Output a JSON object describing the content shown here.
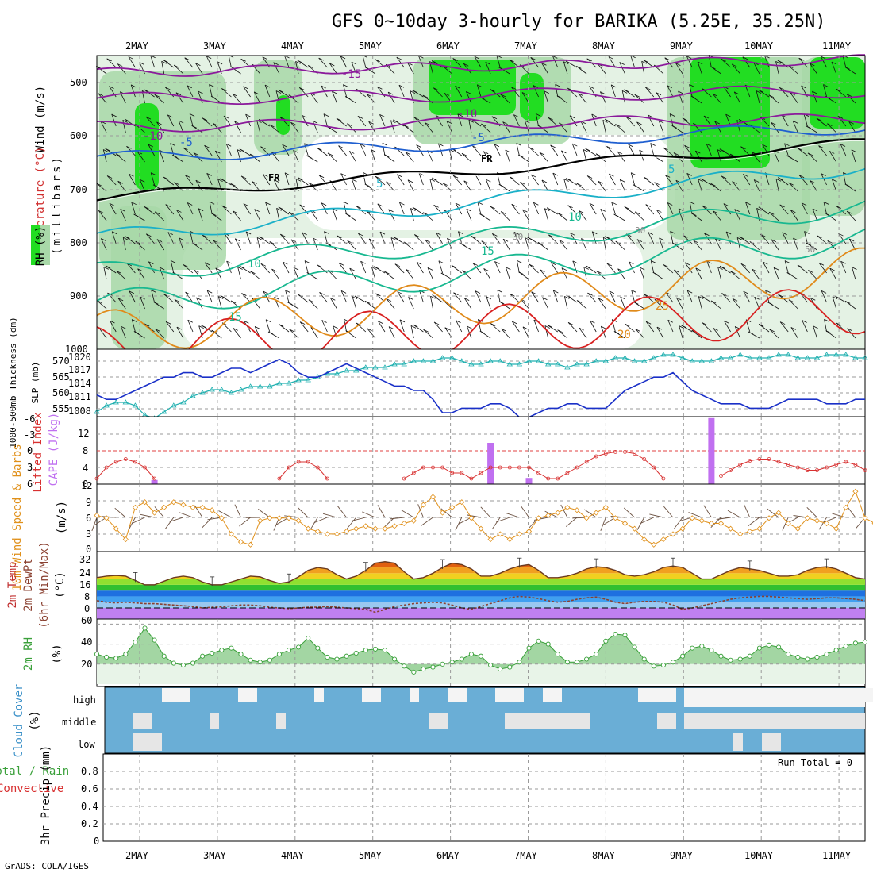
{
  "title": "GFS 0~10day 3-hourly for BARIKA (5.25E, 35.25N)",
  "credit": "GrADS: COLA/IGES",
  "colors": {
    "rh_green": "#22dd22",
    "rh_mid": "#a8d8a8",
    "rh_light": "#e4f2e4",
    "temp_purple": "#8b1a9b",
    "temp_blue": "#1f5fd0",
    "temp_cyan": "#1ab0c8",
    "temp_teal": "#18b890",
    "temp_orange": "#e08a1a",
    "temp_red": "#d82020",
    "freezing": "#000000",
    "thickness": "#20b0b0",
    "slp": "#1a30c8",
    "lifted_index": "#d83030",
    "cape": "#c070f0",
    "wind_speed": "#e0901a",
    "rh2m": "#3aa03a",
    "cloud_blue": "#6aaed6",
    "cloud_white": "#f4f4f4"
  },
  "chart_data": [
    {
      "id": "upper_air",
      "type": "heatmap",
      "ylabel": "Wind (m/s)",
      "ylabel2": "Temperature (°C)",
      "ylabel3": "(millibars)",
      "rh_label": "RH (%)",
      "x_ticks": [
        "2MAY",
        "3MAY",
        "4MAY",
        "5MAY",
        "6MAY",
        "7MAY",
        "8MAY",
        "9MAY",
        "10MAY",
        "11MAY"
      ],
      "y_ticks": [
        "500",
        "600",
        "700",
        "800",
        "900",
        "1000"
      ],
      "ylim": [
        1000,
        450
      ],
      "isotherm_labels": [
        "-15",
        "-10",
        "-10",
        "-5",
        "-5",
        "FR",
        "FR",
        "5",
        "5",
        "10",
        "10",
        "15",
        "15",
        "20",
        "25",
        "5",
        "50",
        "30"
      ]
    },
    {
      "id": "thickness_slp",
      "type": "line",
      "ylabel": "1000-500mb Thickness (dm)",
      "ylabel2": "SLP (mb)",
      "left_ticks": [
        "570",
        "565",
        "560",
        "555"
      ],
      "right_ticks": [
        "1020",
        "1017",
        "1014",
        "1011",
        "1008"
      ],
      "thickness": [
        554,
        556,
        557,
        557,
        556,
        553,
        552,
        554,
        556,
        557,
        559,
        560,
        561,
        561,
        560,
        561,
        562,
        562,
        562,
        563,
        563,
        564,
        564,
        565,
        566,
        566,
        567,
        567,
        568,
        568,
        568,
        569,
        569,
        570,
        570,
        570,
        571,
        571,
        570,
        569,
        569,
        570,
        570,
        569,
        569,
        570,
        570,
        569,
        569,
        568,
        569,
        569,
        570,
        570,
        571,
        571,
        570,
        570,
        571,
        572,
        572,
        571,
        570,
        570,
        570,
        571,
        571,
        572,
        571,
        571,
        571,
        572,
        572,
        571,
        571,
        571,
        572,
        572,
        572,
        571,
        571
      ],
      "slp": [
        1012,
        1011,
        1011,
        1012,
        1013,
        1014,
        1015,
        1016,
        1016,
        1017,
        1017,
        1016,
        1016,
        1017,
        1018,
        1018,
        1017,
        1018,
        1019,
        1020,
        1019,
        1017,
        1016,
        1016,
        1017,
        1018,
        1019,
        1018,
        1017,
        1016,
        1015,
        1014,
        1014,
        1013,
        1013,
        1011,
        1008,
        1008,
        1009,
        1009,
        1009,
        1010,
        1010,
        1009,
        1007,
        1007,
        1008,
        1009,
        1009,
        1010,
        1010,
        1009,
        1009,
        1009,
        1011,
        1013,
        1014,
        1015,
        1016,
        1016,
        1017,
        1015,
        1013,
        1012,
        1011,
        1010,
        1010,
        1010,
        1009,
        1009,
        1009,
        1010,
        1011,
        1011,
        1011,
        1011,
        1010,
        1010,
        1010,
        1011,
        1011
      ]
    },
    {
      "id": "lifted_cape",
      "type": "bar",
      "ylabel": "Lifted Index",
      "ylabel2": "CAPE (J/kg)",
      "left_ticks": [
        "-6",
        "-3",
        "0",
        "3",
        "6"
      ],
      "right_ticks": [
        "12",
        "8",
        "4",
        "0"
      ],
      "cape_bars": [
        {
          "x": 6,
          "value": 1
        },
        {
          "x": 41,
          "value": 10
        },
        {
          "x": 45,
          "value": 1.5
        },
        {
          "x": 64,
          "value": 16
        }
      ],
      "lifted_index": [
        5.0,
        3.0,
        2.0,
        1.5,
        2.0,
        3.0,
        5.0,
        7.0,
        8,
        8,
        8,
        8,
        8,
        8,
        8,
        8,
        8,
        8,
        7,
        5,
        3,
        2,
        2,
        3,
        5,
        7,
        8,
        8,
        8,
        8,
        7,
        6,
        5,
        4,
        3,
        3,
        3,
        4,
        4,
        5,
        4,
        3,
        3,
        3,
        3,
        3,
        4,
        5,
        5,
        4,
        3,
        2,
        1,
        0.5,
        0.2,
        0.2,
        0.5,
        1.5,
        3.0,
        5.0,
        7.0,
        8,
        8,
        7,
        6,
        4.5,
        3.5,
        2.5,
        1.8,
        1.5,
        1.5,
        2.0,
        2.5,
        3.0,
        3.5,
        3.5,
        3.0,
        2.5,
        2.0,
        2.5,
        3.5
      ]
    },
    {
      "id": "wind10m",
      "type": "line",
      "ylabel": "10m Wind Speed & Barbs",
      "yunits": "(m/s)",
      "y_ticks": [
        "12",
        "9",
        "6",
        "3",
        "0"
      ],
      "ylim": [
        0,
        12
      ],
      "speed": [
        6.5,
        6,
        4,
        2,
        8,
        9,
        7,
        8,
        9,
        8.5,
        8,
        8,
        7.5,
        6,
        3,
        1.5,
        1.0,
        5.5,
        6,
        6,
        6,
        5.5,
        4,
        3.5,
        3,
        3,
        3.5,
        4,
        4.5,
        4,
        4,
        4.5,
        5,
        5.5,
        8.5,
        10,
        7,
        8,
        9,
        6,
        4,
        2,
        3,
        2,
        3,
        3.5,
        6,
        6.5,
        7,
        8,
        7.5,
        6,
        7,
        8,
        6,
        5,
        4,
        2,
        1,
        2,
        3,
        4,
        6,
        5.5,
        5,
        5,
        4,
        3,
        3.5,
        4,
        6,
        7,
        5,
        4,
        6,
        5.5,
        5,
        4,
        8,
        11,
        6,
        5
      ]
    },
    {
      "id": "temp2m",
      "type": "area",
      "ylabel": "2m Temp",
      "ylabel2": "2m DewPt",
      "ylabel3": "(6hr Min/Max)",
      "yunits": "(°C)",
      "y_ticks": [
        "32",
        "24",
        "16",
        "8",
        "0"
      ],
      "ylim": [
        -4,
        36
      ],
      "temp": [
        21,
        22,
        22.5,
        22,
        19,
        16,
        16,
        18.5,
        21,
        22,
        21,
        18,
        16,
        16,
        18,
        20,
        22,
        21.5,
        19,
        17,
        18,
        21.5,
        26,
        28,
        27,
        23,
        20,
        22,
        26,
        31,
        32,
        31,
        25,
        20,
        21,
        24,
        28,
        31,
        30,
        27,
        22,
        22,
        24,
        27,
        29,
        30,
        26,
        21,
        21,
        22,
        24,
        27,
        28.5,
        28,
        26,
        23,
        22,
        23,
        25,
        28,
        29,
        28,
        24,
        20,
        20,
        23,
        26,
        28,
        27,
        26,
        24,
        22,
        22,
        23,
        26,
        28,
        28.5,
        27,
        24,
        21,
        20
      ],
      "dewpt": [
        5,
        4,
        3.5,
        4,
        3.5,
        3,
        3,
        2.5,
        2,
        1.5,
        1,
        0,
        0.5,
        0.8,
        1.5,
        2,
        2,
        1.5,
        0.5,
        0,
        -0.5,
        0,
        0.5,
        0.5,
        1,
        0.5,
        0,
        -0.5,
        -1,
        -3,
        -1,
        1,
        2,
        3,
        3.5,
        4,
        3.5,
        2,
        0,
        -1,
        1,
        3,
        5,
        7,
        8,
        7.5,
        6.5,
        5,
        4,
        4.5,
        6,
        7,
        7.5,
        6,
        4,
        3,
        4,
        4.5,
        4.5,
        4,
        2,
        -1,
        0,
        1.5,
        3,
        4.5,
        6,
        7,
        7.5,
        8,
        8,
        7.5,
        7,
        6.5,
        6,
        6.5,
        7,
        7,
        6.5,
        6,
        5
      ]
    },
    {
      "id": "rh2m",
      "type": "area",
      "ylabel": "2m RH",
      "yunits": "(%)",
      "y_ticks": [
        "60",
        "40",
        "20"
      ],
      "ylim": [
        0,
        65
      ],
      "rh": [
        30,
        27,
        26,
        30,
        42,
        56,
        44,
        28,
        21,
        19,
        21,
        28,
        31,
        34,
        36,
        30,
        24,
        22,
        24,
        30,
        34,
        37,
        46,
        36,
        27,
        25,
        28,
        31,
        34,
        35,
        34,
        25,
        18,
        12,
        15,
        17,
        20,
        22,
        25,
        30,
        28,
        19,
        15,
        17,
        22,
        36,
        43,
        40,
        30,
        22,
        22,
        25,
        30,
        43,
        50,
        49,
        37,
        25,
        18,
        19,
        22,
        28,
        36,
        38,
        34,
        28,
        24,
        25,
        28,
        36,
        39,
        37,
        30,
        27,
        25,
        27,
        30,
        34,
        38,
        41,
        42
      ]
    },
    {
      "id": "cloud",
      "type": "heatmap",
      "ylabel": "Cloud Cover",
      "yunits": "(%)",
      "y_ticks": [
        "high",
        "middle",
        "low"
      ]
    },
    {
      "id": "precip",
      "type": "bar",
      "ylabel": "3hr Precip (mm)",
      "ylabel_total": "Total / Rain",
      "ylabel_conv": "Convective",
      "run_total": "Run Total = 0",
      "y_ticks": [
        "0.8",
        "0.6",
        "0.4",
        "0.2",
        "0"
      ],
      "ylim": [
        0,
        1
      ],
      "values": []
    }
  ]
}
